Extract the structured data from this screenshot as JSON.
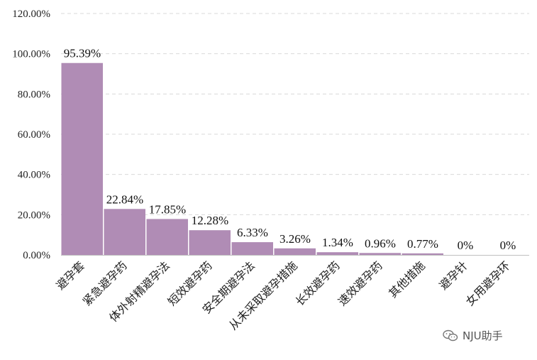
{
  "chart_data": {
    "type": "bar",
    "categories": [
      "避孕套",
      "紧急避孕药",
      "体外射精避孕法",
      "短效避孕药",
      "安全期避孕法",
      "从未采取避孕措施",
      "长效避孕药",
      "速效避孕药",
      "其他措施",
      "避孕针",
      "女用避孕环"
    ],
    "values": [
      95.39,
      22.84,
      17.85,
      12.28,
      6.33,
      3.26,
      1.34,
      0.96,
      0.77,
      0,
      0
    ],
    "data_labels": [
      "95.39%",
      "22.84%",
      "17.85%",
      "12.28%",
      "6.33%",
      "3.26%",
      "1.34%",
      "0.96%",
      "0.77%",
      "0%",
      "0%"
    ],
    "y_ticks": [
      "0.00%",
      "20.00%",
      "40.00%",
      "60.00%",
      "80.00%",
      "100.00%",
      "120.00%"
    ],
    "ylim": [
      0,
      120
    ],
    "y_tick_values": [
      0,
      20,
      40,
      60,
      80,
      100,
      120
    ],
    "grid": true,
    "bar_color": "#b08cb5"
  },
  "watermark": {
    "text": "NJU助手",
    "icon": "wechat-icon"
  }
}
